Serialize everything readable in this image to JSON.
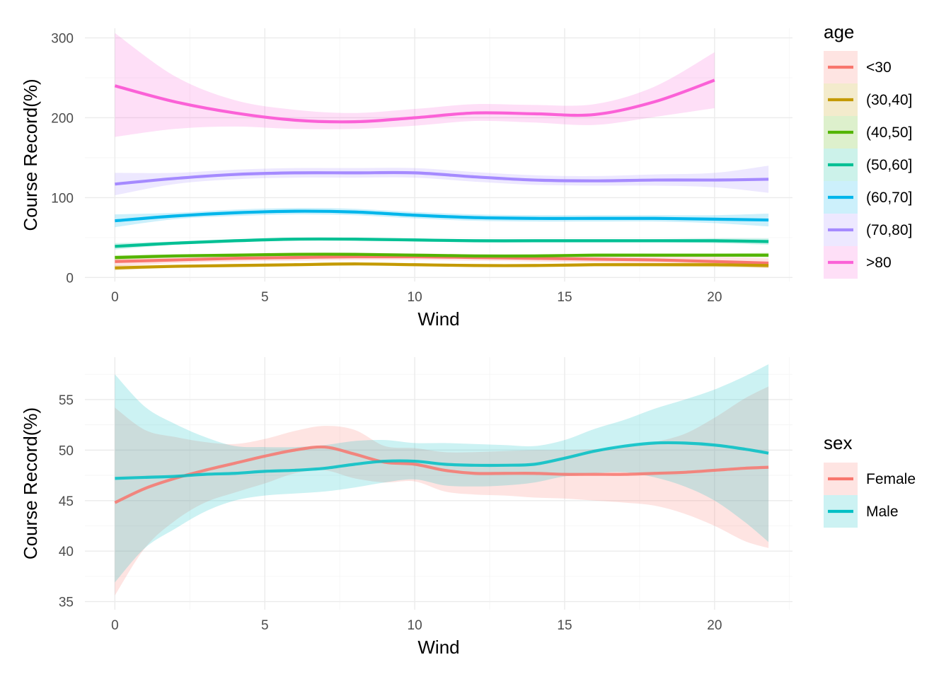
{
  "chart_data": [
    {
      "type": "line",
      "xlabel": "Wind",
      "ylabel": "Course Record(%)",
      "xlim": [
        -1.0,
        22.6
      ],
      "ylim": [
        -5,
        312
      ],
      "xticks": [
        0,
        5,
        10,
        15,
        20
      ],
      "yticks": [
        0,
        100,
        200,
        300
      ],
      "xtick_labels": [
        "0",
        "5",
        "10",
        "15",
        "20"
      ],
      "ytick_labels": [
        "0",
        "100",
        "200",
        "300"
      ],
      "grid": true,
      "legend": {
        "title": "age",
        "position": "right"
      },
      "series": [
        {
          "name": "<30",
          "color": "#F8766D",
          "x": [
            0,
            2,
            4,
            6,
            8,
            10,
            12,
            14,
            16,
            18,
            20,
            21.8
          ],
          "y": [
            20,
            22,
            24,
            25,
            26,
            26,
            25,
            24,
            23,
            22,
            20,
            18
          ],
          "lower": [
            14,
            18,
            20,
            21,
            22,
            22,
            21,
            20,
            19,
            17,
            15,
            12
          ],
          "upper": [
            26,
            26,
            28,
            29,
            30,
            30,
            29,
            28,
            27,
            27,
            26,
            24
          ]
        },
        {
          "name": "(30,40]",
          "color": "#C49A00",
          "x": [
            0,
            2,
            4,
            6,
            8,
            10,
            12,
            14,
            16,
            18,
            20,
            21.8
          ],
          "y": [
            12,
            14,
            15,
            16,
            17,
            16,
            15,
            15,
            16,
            16,
            16,
            15
          ],
          "lower": [
            9,
            12,
            13,
            14,
            15,
            14,
            13,
            13,
            14,
            14,
            13,
            12
          ],
          "upper": [
            15,
            16,
            17,
            18,
            19,
            18,
            17,
            17,
            18,
            18,
            19,
            18
          ]
        },
        {
          "name": "(40,50]",
          "color": "#53B400",
          "x": [
            0,
            2,
            4,
            6,
            8,
            10,
            12,
            14,
            16,
            18,
            20,
            21.8
          ],
          "y": [
            25,
            27,
            28,
            29,
            29,
            28,
            27,
            27,
            28,
            28,
            28,
            28
          ],
          "lower": [
            22,
            25,
            26,
            27,
            27,
            26,
            25,
            25,
            26,
            26,
            26,
            25
          ],
          "upper": [
            28,
            29,
            30,
            31,
            31,
            30,
            29,
            29,
            30,
            30,
            30,
            31
          ]
        },
        {
          "name": "(50,60]",
          "color": "#00C094",
          "x": [
            0,
            2,
            4,
            6,
            8,
            10,
            12,
            14,
            16,
            18,
            20,
            21.8
          ],
          "y": [
            39,
            43,
            46,
            48,
            48,
            47,
            46,
            46,
            46,
            46,
            46,
            45
          ],
          "lower": [
            35,
            41,
            44,
            46,
            46,
            45,
            44,
            44,
            44,
            44,
            43,
            41
          ],
          "upper": [
            43,
            45,
            48,
            50,
            50,
            49,
            48,
            48,
            48,
            48,
            49,
            49
          ]
        },
        {
          "name": "(60,70]",
          "color": "#00B6EB",
          "x": [
            0,
            2,
            4,
            6,
            8,
            10,
            12,
            14,
            16,
            18,
            20,
            21.8
          ],
          "y": [
            71,
            77,
            81,
            83,
            82,
            78,
            75,
            74,
            74,
            74,
            73,
            72
          ],
          "lower": [
            63,
            73,
            77,
            79,
            78,
            74,
            71,
            70,
            70,
            70,
            68,
            64
          ],
          "upper": [
            79,
            81,
            85,
            87,
            86,
            82,
            79,
            78,
            78,
            78,
            78,
            80
          ]
        },
        {
          "name": "(70,80]",
          "color": "#A58AFF",
          "x": [
            0,
            2,
            4,
            6,
            8,
            10,
            12,
            14,
            16,
            18,
            20,
            21.8
          ],
          "y": [
            117,
            124,
            129,
            131,
            131,
            131,
            126,
            122,
            121,
            122,
            122,
            123
          ],
          "lower": [
            103,
            117,
            123,
            125,
            125,
            125,
            120,
            116,
            115,
            115,
            113,
            106
          ],
          "upper": [
            131,
            131,
            135,
            137,
            137,
            137,
            132,
            128,
            127,
            129,
            131,
            140
          ]
        },
        {
          "name": ">80",
          "color": "#FB61D7",
          "x": [
            0,
            2,
            4,
            6,
            8,
            10,
            12,
            14,
            16,
            18,
            20
          ],
          "y": [
            240,
            220,
            206,
            197,
            195,
            200,
            206,
            205,
            204,
            220,
            247
          ],
          "lower": [
            176,
            186,
            189,
            186,
            186,
            190,
            196,
            194,
            191,
            201,
            212
          ],
          "upper": [
            306,
            252,
            222,
            210,
            206,
            211,
            217,
            216,
            217,
            239,
            282
          ]
        }
      ]
    },
    {
      "type": "line",
      "xlabel": "Wind",
      "ylabel": "Course Record(%)",
      "xlim": [
        -1.0,
        22.6
      ],
      "ylim": [
        34.2,
        59.2
      ],
      "xticks": [
        0,
        5,
        10,
        15,
        20
      ],
      "yticks": [
        35,
        40,
        45,
        50,
        55
      ],
      "xtick_labels": [
        "0",
        "5",
        "10",
        "15",
        "20"
      ],
      "ytick_labels": [
        "35",
        "40",
        "45",
        "50",
        "55"
      ],
      "grid": true,
      "legend": {
        "title": "sex",
        "position": "right"
      },
      "series": [
        {
          "name": "Female",
          "color": "#F8766D",
          "x": [
            0,
            1,
            2,
            3,
            4,
            5,
            6,
            7,
            8,
            9,
            10,
            11,
            12,
            13,
            14,
            15,
            16,
            17,
            18,
            19,
            20,
            21,
            21.8
          ],
          "y": [
            44.8,
            46.2,
            47.2,
            48.0,
            48.7,
            49.4,
            50.0,
            50.3,
            49.6,
            48.8,
            48.6,
            48.0,
            47.7,
            47.7,
            47.7,
            47.6,
            47.6,
            47.6,
            47.7,
            47.8,
            48.0,
            48.2,
            48.3
          ],
          "lower": [
            35.6,
            40.3,
            43.0,
            44.8,
            45.8,
            46.7,
            47.7,
            48.0,
            47.2,
            46.8,
            46.9,
            45.9,
            45.6,
            45.5,
            45.3,
            45.2,
            45.0,
            44.8,
            44.5,
            43.7,
            42.5,
            41.0,
            40.3
          ],
          "upper": [
            54.2,
            52.0,
            51.3,
            50.8,
            50.6,
            51.1,
            51.9,
            52.4,
            52.0,
            50.4,
            50.2,
            49.8,
            49.8,
            49.9,
            50.0,
            50.0,
            50.1,
            50.3,
            50.8,
            51.6,
            53.2,
            55.1,
            56.3
          ]
        },
        {
          "name": "Male",
          "color": "#00BFC4",
          "x": [
            0,
            1,
            2,
            3,
            4,
            5,
            6,
            7,
            8,
            9,
            10,
            11,
            12,
            13,
            14,
            15,
            16,
            17,
            18,
            19,
            20,
            21,
            21.8
          ],
          "y": [
            47.2,
            47.3,
            47.4,
            47.6,
            47.7,
            47.9,
            48.0,
            48.2,
            48.6,
            48.9,
            48.9,
            48.6,
            48.5,
            48.5,
            48.6,
            49.2,
            49.9,
            50.4,
            50.7,
            50.7,
            50.5,
            50.1,
            49.7
          ],
          "lower": [
            36.9,
            40.3,
            42.2,
            43.9,
            45.0,
            45.5,
            45.7,
            45.9,
            46.3,
            46.8,
            47.1,
            46.5,
            46.4,
            46.5,
            46.8,
            47.4,
            47.7,
            47.8,
            47.3,
            46.4,
            45.0,
            42.9,
            40.9
          ],
          "upper": [
            57.5,
            54.3,
            52.6,
            51.3,
            50.4,
            50.3,
            50.3,
            50.5,
            50.9,
            51.0,
            50.7,
            50.7,
            50.6,
            50.5,
            50.4,
            51.0,
            52.1,
            53.0,
            54.1,
            55.0,
            56.0,
            57.3,
            58.5
          ]
        }
      ]
    }
  ]
}
